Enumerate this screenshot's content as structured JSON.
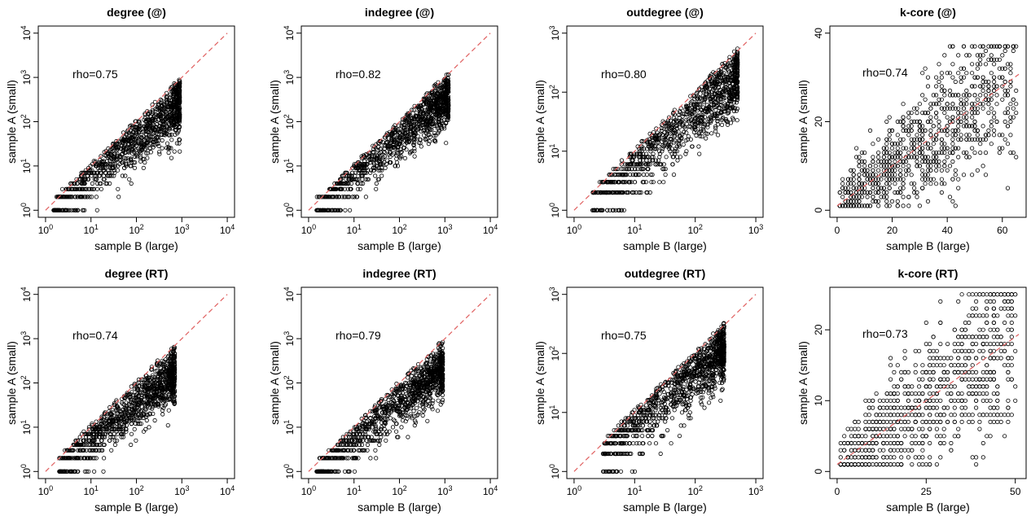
{
  "chart_data": [
    {
      "type": "scatter",
      "title": "degree (@)",
      "xlabel": "sample B (large)",
      "ylabel": "sample A (small)",
      "scale": "log",
      "xlim": [
        1,
        10000
      ],
      "ylim": [
        1,
        10000
      ],
      "xticks_exp": [
        0,
        1,
        2,
        3,
        4
      ],
      "yticks_exp": [
        0,
        1,
        2,
        3,
        4
      ],
      "annotation": "rho=0.75",
      "reference_line": "y = x",
      "dist": {
        "slope": 0.82,
        "spread": 0.32,
        "xmin": 1.5,
        "xmax": 900
      }
    },
    {
      "type": "scatter",
      "title": "indegree (@)",
      "xlabel": "sample B (large)",
      "ylabel": "sample A (small)",
      "scale": "log",
      "xlim": [
        1,
        10000
      ],
      "ylim": [
        1,
        10000
      ],
      "xticks_exp": [
        0,
        1,
        2,
        3,
        4
      ],
      "yticks_exp": [
        0,
        1,
        2,
        3,
        4
      ],
      "annotation": "rho=0.82",
      "reference_line": "y = x",
      "dist": {
        "slope": 0.85,
        "spread": 0.3,
        "xmin": 1.5,
        "xmax": 1200
      }
    },
    {
      "type": "scatter",
      "title": "outdegree (@)",
      "xlabel": "sample B (large)",
      "ylabel": "sample A (small)",
      "scale": "log",
      "xlim": [
        1,
        1000
      ],
      "ylim": [
        1,
        1000
      ],
      "xticks_exp": [
        0,
        1,
        2,
        3
      ],
      "yticks_exp": [
        0,
        1,
        2,
        3
      ],
      "annotation": "rho=0.80",
      "reference_line": "y = x",
      "dist": {
        "slope": 0.85,
        "spread": 0.3,
        "xmin": 2,
        "xmax": 500
      }
    },
    {
      "type": "scatter",
      "title": "k-core (@)",
      "xlabel": "sample B (large)",
      "ylabel": "sample A (small)",
      "scale": "linear",
      "xlim": [
        0,
        66
      ],
      "ylim": [
        0,
        40
      ],
      "xticks": [
        0,
        20,
        40,
        60
      ],
      "yticks": [
        0,
        20,
        40
      ],
      "annotation": "rho=0.74",
      "reference_line": "y = 0.45x + 1",
      "dist": {
        "slope": 0.45,
        "spread": 7,
        "xmin": 1,
        "xmax": 65,
        "ymax": 37
      }
    },
    {
      "type": "scatter",
      "title": "degree (RT)",
      "xlabel": "sample B (large)",
      "ylabel": "sample A (small)",
      "scale": "log",
      "xlim": [
        1,
        10000
      ],
      "ylim": [
        1,
        10000
      ],
      "xticks_exp": [
        0,
        1,
        2,
        3,
        4
      ],
      "yticks_exp": [
        0,
        1,
        2,
        3,
        4
      ],
      "annotation": "rho=0.74",
      "reference_line": "y = x",
      "dist": {
        "slope": 0.8,
        "spread": 0.3,
        "xmin": 2,
        "xmax": 700
      }
    },
    {
      "type": "scatter",
      "title": "indegree (RT)",
      "xlabel": "sample B (large)",
      "ylabel": "sample A (small)",
      "scale": "log",
      "xlim": [
        1,
        10000
      ],
      "ylim": [
        1,
        10000
      ],
      "xticks_exp": [
        0,
        1,
        2,
        3,
        4
      ],
      "yticks_exp": [
        0,
        1,
        2,
        3,
        4
      ],
      "annotation": "rho=0.79",
      "reference_line": "y = x",
      "dist": {
        "slope": 0.8,
        "spread": 0.3,
        "xmin": 1.5,
        "xmax": 900
      }
    },
    {
      "type": "scatter",
      "title": "outdegree (RT)",
      "xlabel": "sample B (large)",
      "ylabel": "sample A (small)",
      "scale": "log",
      "xlim": [
        1,
        1000
      ],
      "ylim": [
        1,
        1000
      ],
      "xticks_exp": [
        0,
        1,
        2,
        3
      ],
      "yticks_exp": [
        0,
        1,
        2,
        3
      ],
      "annotation": "rho=0.75",
      "reference_line": "y = x",
      "dist": {
        "slope": 0.85,
        "spread": 0.28,
        "xmin": 3,
        "xmax": 300
      }
    },
    {
      "type": "scatter",
      "title": "k-core (RT)",
      "xlabel": "sample B (large)",
      "ylabel": "sample A (small)",
      "scale": "linear",
      "xlim": [
        0,
        51
      ],
      "ylim": [
        0,
        25
      ],
      "xticks": [
        0,
        25,
        50
      ],
      "yticks": [
        0,
        10,
        20
      ],
      "annotation": "rho=0.73",
      "reference_line": "y = 0.36x + 1",
      "dist": {
        "slope": 0.36,
        "spread": 5,
        "xmin": 1,
        "xmax": 50,
        "ymax": 25
      }
    }
  ],
  "colors": {
    "points": "#000000",
    "reference_line": "#e06060",
    "background": "#ffffff"
  }
}
